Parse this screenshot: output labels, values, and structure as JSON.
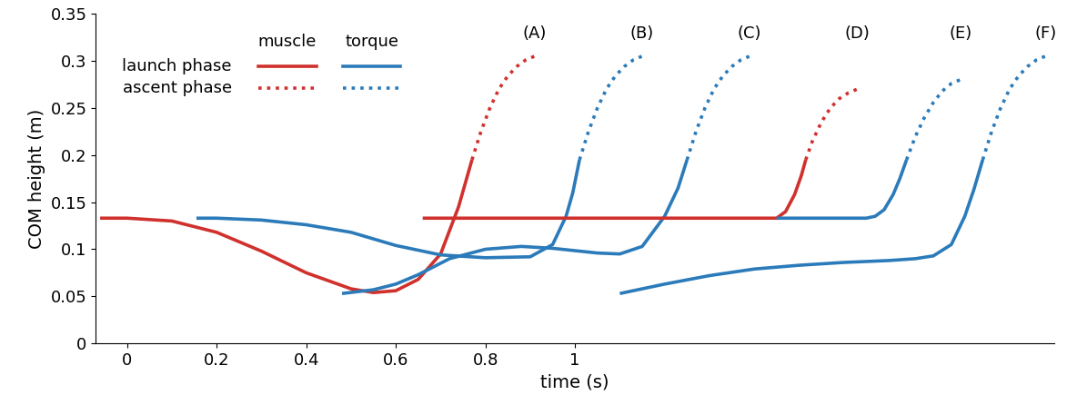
{
  "chart_data": {
    "type": "line",
    "x_label": "time (s)",
    "y_label": "COM height (m)",
    "xlim": [
      -0.07,
      2.07
    ],
    "xticks": [
      0,
      0.2,
      0.4,
      0.6,
      0.8,
      1
    ],
    "ylim": [
      0,
      0.35
    ],
    "yticks": [
      0,
      0.05,
      0.1,
      0.15,
      0.2,
      0.25,
      0.3,
      0.35
    ],
    "legend_columns": [
      {
        "name": "muscle",
        "color": "#d0312d"
      },
      {
        "name": "torque",
        "color": "#2b7bba"
      }
    ],
    "legend_rows": [
      {
        "name": "launch phase",
        "line_style": "solid"
      },
      {
        "name": "ascent phase",
        "line_style": "dotted"
      }
    ],
    "series": [
      {
        "name": "(A)",
        "model": "muscle",
        "launch": {
          "x": [
            -0.06,
            0.0,
            0.1,
            0.2,
            0.3,
            0.4,
            0.5,
            0.55,
            0.6,
            0.65,
            0.7,
            0.74,
            0.77
          ],
          "y": [
            0.133,
            0.133,
            0.13,
            0.118,
            0.098,
            0.075,
            0.058,
            0.054,
            0.056,
            0.068,
            0.095,
            0.145,
            0.195
          ]
        },
        "ascent": {
          "x": [
            0.77,
            0.79,
            0.81,
            0.83,
            0.85,
            0.87,
            0.89,
            0.91
          ],
          "y": [
            0.195,
            0.225,
            0.25,
            0.27,
            0.284,
            0.294,
            0.301,
            0.305
          ]
        }
      },
      {
        "name": "(B)",
        "model": "torque",
        "launch": {
          "x": [
            0.155,
            0.2,
            0.3,
            0.4,
            0.5,
            0.6,
            0.7,
            0.8,
            0.9,
            0.95,
            0.98,
            0.995,
            1.01
          ],
          "y": [
            0.133,
            0.133,
            0.131,
            0.126,
            0.118,
            0.104,
            0.094,
            0.091,
            0.092,
            0.105,
            0.135,
            0.16,
            0.195
          ]
        },
        "ascent": {
          "x": [
            1.01,
            1.03,
            1.05,
            1.07,
            1.09,
            1.11,
            1.13,
            1.15
          ],
          "y": [
            0.195,
            0.225,
            0.25,
            0.27,
            0.284,
            0.294,
            0.301,
            0.305
          ]
        }
      },
      {
        "name": "(C)",
        "model": "torque",
        "launch": {
          "x": [
            0.48,
            0.55,
            0.6,
            0.65,
            0.72,
            0.8,
            0.88,
            0.95,
            1.05,
            1.1,
            1.15,
            1.2,
            1.23,
            1.25
          ],
          "y": [
            0.053,
            0.057,
            0.063,
            0.073,
            0.09,
            0.1,
            0.103,
            0.101,
            0.096,
            0.095,
            0.103,
            0.135,
            0.165,
            0.195
          ]
        },
        "ascent": {
          "x": [
            1.25,
            1.27,
            1.29,
            1.31,
            1.33,
            1.35,
            1.37,
            1.39
          ],
          "y": [
            0.195,
            0.225,
            0.25,
            0.27,
            0.284,
            0.294,
            0.301,
            0.305
          ]
        }
      },
      {
        "name": "(D)",
        "model": "muscle",
        "launch": {
          "x": [
            0.66,
            0.8,
            1.0,
            1.2,
            1.4,
            1.45,
            1.47,
            1.49,
            1.505,
            1.515
          ],
          "y": [
            0.133,
            0.133,
            0.133,
            0.133,
            0.133,
            0.133,
            0.14,
            0.158,
            0.178,
            0.195
          ]
        },
        "ascent": {
          "x": [
            1.515,
            1.53,
            1.55,
            1.57,
            1.59,
            1.61,
            1.63
          ],
          "y": [
            0.195,
            0.215,
            0.235,
            0.25,
            0.26,
            0.266,
            0.27
          ]
        }
      },
      {
        "name": "(E)",
        "model": "torque",
        "launch": {
          "x": [
            1.45,
            1.55,
            1.65,
            1.67,
            1.69,
            1.71,
            1.725,
            1.74
          ],
          "y": [
            0.133,
            0.133,
            0.133,
            0.135,
            0.142,
            0.158,
            0.175,
            0.195
          ]
        },
        "ascent": {
          "x": [
            1.74,
            1.76,
            1.78,
            1.8,
            1.82,
            1.84,
            1.86
          ],
          "y": [
            0.195,
            0.22,
            0.24,
            0.256,
            0.268,
            0.276,
            0.28
          ]
        }
      },
      {
        "name": "(F)",
        "model": "torque",
        "launch": {
          "x": [
            1.1,
            1.15,
            1.2,
            1.3,
            1.4,
            1.5,
            1.6,
            1.7,
            1.76,
            1.8,
            1.84,
            1.87,
            1.89,
            1.91
          ],
          "y": [
            0.053,
            0.058,
            0.063,
            0.072,
            0.079,
            0.083,
            0.086,
            0.088,
            0.09,
            0.093,
            0.105,
            0.135,
            0.163,
            0.195
          ]
        },
        "ascent": {
          "x": [
            1.91,
            1.93,
            1.95,
            1.97,
            1.99,
            2.01,
            2.03,
            2.05
          ],
          "y": [
            0.195,
            0.225,
            0.25,
            0.27,
            0.284,
            0.294,
            0.301,
            0.305
          ]
        }
      }
    ]
  }
}
